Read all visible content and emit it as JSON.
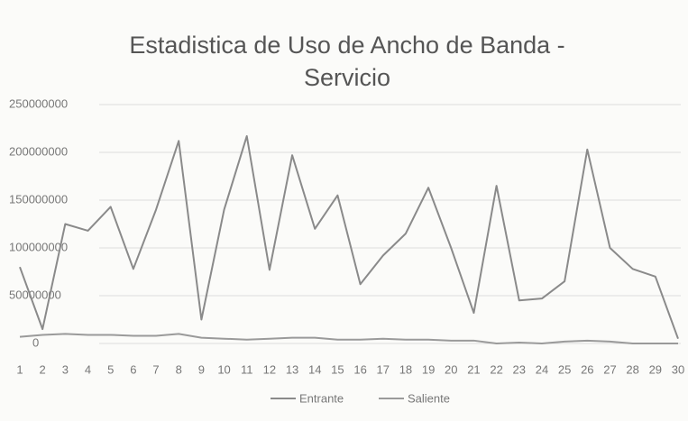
{
  "chart_data": {
    "type": "line",
    "title": "Estadistica de Uso de Ancho de Banda -",
    "subtitle": "Servicio",
    "categories": [
      "1",
      "2",
      "3",
      "4",
      "5",
      "6",
      "7",
      "8",
      "9",
      "10",
      "11",
      "12",
      "13",
      "14",
      "15",
      "16",
      "17",
      "18",
      "19",
      "20",
      "21",
      "22",
      "23",
      "24",
      "25",
      "26",
      "27",
      "28",
      "29",
      "30"
    ],
    "series": [
      {
        "name": "Entrante",
        "color": "#8a8a8a",
        "values": [
          80000000,
          15000000,
          125000000,
          118000000,
          143000000,
          78000000,
          140000000,
          212000000,
          25000000,
          140000000,
          217000000,
          77000000,
          197000000,
          120000000,
          155000000,
          62000000,
          92000000,
          115000000,
          163000000,
          100000000,
          32000000,
          165000000,
          45000000,
          47000000,
          65000000,
          203000000,
          100000000,
          78000000,
          70000000,
          5000000
        ]
      },
      {
        "name": "Saliente",
        "color": "#9a9a9a",
        "values": [
          7000000,
          9000000,
          10000000,
          9000000,
          9000000,
          8000000,
          8000000,
          10000000,
          6000000,
          5000000,
          4000000,
          5000000,
          6000000,
          6000000,
          4000000,
          4000000,
          5000000,
          4000000,
          4000000,
          3000000,
          3000000,
          0,
          1000000,
          0,
          2000000,
          3000000,
          2000000,
          0,
          0,
          0
        ]
      }
    ],
    "ylim": [
      0,
      250000000
    ],
    "yticks": [
      0,
      50000000,
      100000000,
      150000000,
      200000000,
      250000000
    ],
    "grid": true
  }
}
